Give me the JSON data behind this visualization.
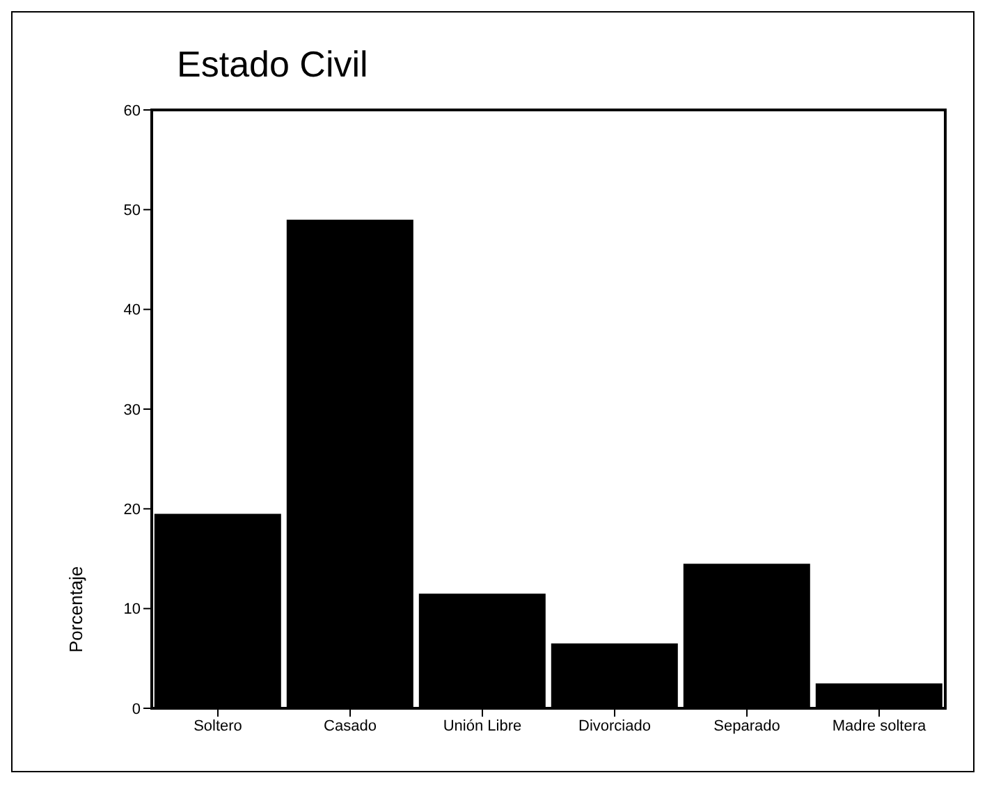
{
  "chart_data": {
    "type": "bar",
    "title": "Estado Civil",
    "ylabel": "Porcentaje",
    "categories": [
      "Soltero",
      "Casado",
      "Unión Libre",
      "Divorciado",
      "Separado",
      "Madre soltera"
    ],
    "values": [
      19.5,
      49,
      11.5,
      6.5,
      14.5,
      2.5
    ],
    "color": "#000000",
    "ylim": [
      0,
      60
    ],
    "yticks": [
      0,
      10,
      20,
      30,
      40,
      50,
      60
    ],
    "grid": false
  }
}
